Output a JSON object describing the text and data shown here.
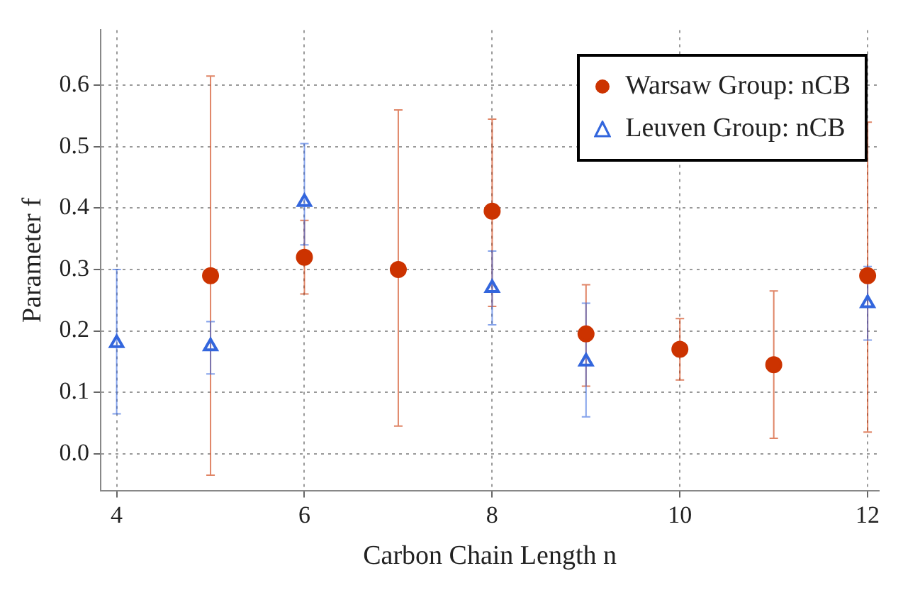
{
  "chart_data": {
    "type": "scatter",
    "xlabel": "Carbon Chain Length n",
    "ylabel": "Parameter f",
    "xlim": [
      3.83,
      12.12
    ],
    "xticks": [
      4,
      6,
      8,
      10,
      12
    ],
    "ylim": [
      -0.06,
      0.69
    ],
    "yticks": [
      {
        "value": 0,
        "label": "0.0"
      },
      {
        "value": 0.1,
        "label": "0.1"
      },
      {
        "value": 0.2,
        "label": "0.2"
      },
      {
        "value": 0.3,
        "label": "0.3"
      },
      {
        "value": 0.4,
        "label": "0.4"
      },
      {
        "value": 0.5,
        "label": "0.5"
      },
      {
        "value": 0.6,
        "label": "0.6"
      }
    ],
    "grid": true,
    "legend": "top right",
    "series": [
      {
        "name": "Warsaw Group: nCB",
        "color": "#cc3300",
        "marker": "circle",
        "x": [
          5,
          6,
          7,
          8,
          9,
          10,
          11,
          12
        ],
        "values": [
          0.29,
          0.32,
          0.3,
          0.395,
          0.195,
          0.17,
          0.145,
          0.29
        ],
        "errors": [
          [
            -0.035,
            0.615
          ],
          [
            0.26,
            0.38
          ],
          [
            0.045,
            0.56
          ],
          [
            0.24,
            0.545
          ],
          [
            0.11,
            0.275
          ],
          [
            0.12,
            0.22
          ],
          [
            0.025,
            0.265
          ],
          [
            0.035,
            0.54
          ]
        ]
      },
      {
        "name": "Leuven Group: nCB",
        "color": "#3366dd",
        "marker": "triangle",
        "x": [
          4,
          5,
          6,
          8,
          9,
          12
        ],
        "values": [
          0.18,
          0.175,
          0.41,
          0.27,
          0.15,
          0.245
        ],
        "errors": [
          [
            0.065,
            0.3
          ],
          [
            0.13,
            0.215
          ],
          [
            0.34,
            0.505
          ],
          [
            0.21,
            0.33
          ],
          [
            0.06,
            0.245
          ],
          [
            0.185,
            0.305
          ]
        ]
      }
    ]
  }
}
